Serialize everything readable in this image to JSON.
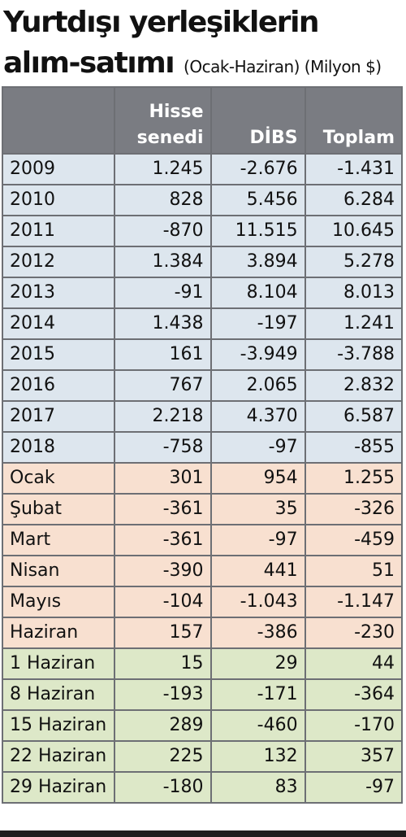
{
  "title_line1": "Yurtdışı yerleşiklerin",
  "title_line2": "alım-satımı",
  "subtitle": "(Ocak-Haziran) (Milyon $)",
  "chart_data": {
    "type": "table",
    "columns": [
      "",
      "Hisse senedi",
      "DİBS",
      "Toplam"
    ],
    "rows": [
      {
        "label": "2009",
        "hisse": "1.245",
        "dibs": "-2.676",
        "toplam": "-1.431",
        "group": "year"
      },
      {
        "label": "2010",
        "hisse": "828",
        "dibs": "5.456",
        "toplam": "6.284",
        "group": "year"
      },
      {
        "label": "2011",
        "hisse": "-870",
        "dibs": "11.515",
        "toplam": "10.645",
        "group": "year"
      },
      {
        "label": "2012",
        "hisse": "1.384",
        "dibs": "3.894",
        "toplam": "5.278",
        "group": "year"
      },
      {
        "label": "2013",
        "hisse": "-91",
        "dibs": "8.104",
        "toplam": "8.013",
        "group": "year"
      },
      {
        "label": "2014",
        "hisse": "1.438",
        "dibs": "-197",
        "toplam": "1.241",
        "group": "year"
      },
      {
        "label": "2015",
        "hisse": "161",
        "dibs": "-3.949",
        "toplam": "-3.788",
        "group": "year"
      },
      {
        "label": "2016",
        "hisse": "767",
        "dibs": "2.065",
        "toplam": "2.832",
        "group": "year"
      },
      {
        "label": "2017",
        "hisse": "2.218",
        "dibs": "4.370",
        "toplam": "6.587",
        "group": "year"
      },
      {
        "label": "2018",
        "hisse": "-758",
        "dibs": "-97",
        "toplam": "-855",
        "group": "year"
      },
      {
        "label": "Ocak",
        "hisse": "301",
        "dibs": "954",
        "toplam": "1.255",
        "group": "month"
      },
      {
        "label": "Şubat",
        "hisse": "-361",
        "dibs": "35",
        "toplam": "-326",
        "group": "month"
      },
      {
        "label": "Mart",
        "hisse": "-361",
        "dibs": "-97",
        "toplam": "-459",
        "group": "month"
      },
      {
        "label": "Nisan",
        "hisse": "-390",
        "dibs": "441",
        "toplam": "51",
        "group": "month"
      },
      {
        "label": "Mayıs",
        "hisse": "-104",
        "dibs": "-1.043",
        "toplam": "-1.147",
        "group": "month"
      },
      {
        "label": "Haziran",
        "hisse": "157",
        "dibs": "-386",
        "toplam": "-230",
        "group": "month"
      },
      {
        "label": "1 Haziran",
        "hisse": "15",
        "dibs": "29",
        "toplam": "44",
        "group": "week"
      },
      {
        "label": "8 Haziran",
        "hisse": "-193",
        "dibs": "-171",
        "toplam": "-364",
        "group": "week"
      },
      {
        "label": "15 Haziran",
        "hisse": "289",
        "dibs": "-460",
        "toplam": "-170",
        "group": "week"
      },
      {
        "label": "22 Haziran",
        "hisse": "225",
        "dibs": "132",
        "toplam": "357",
        "group": "week"
      },
      {
        "label": "29 Haziran",
        "hisse": "-180",
        "dibs": "83",
        "toplam": "-97",
        "group": "week"
      }
    ]
  },
  "colors": {
    "header_bg": "#7a7c82",
    "year_bg": "#dde6ee",
    "month_bg": "#f8e0d0",
    "week_bg": "#dde8c8",
    "border": "#6d6f74"
  }
}
